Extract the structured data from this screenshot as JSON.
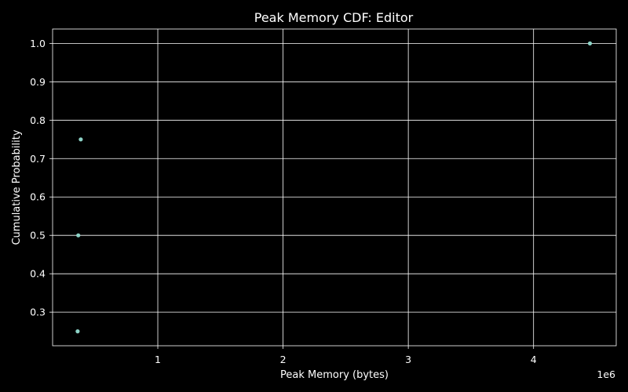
{
  "chart_data": {
    "type": "scatter",
    "title": "Peak Memory CDF: Editor",
    "xlabel": "Peak Memory (bytes)",
    "ylabel": "Cumulative Probability",
    "x_offset_text": "1e6",
    "x_ticks": [
      1,
      2,
      3,
      4
    ],
    "y_ticks": [
      "0.3",
      "0.4",
      "0.5",
      "0.6",
      "0.7",
      "0.8",
      "0.9",
      "1.0"
    ],
    "xlim": [
      0.16,
      4.66
    ],
    "ylim": [
      0.2125,
      1.0375
    ],
    "grid": true,
    "series": [
      {
        "x": [
          0.36,
          0.365,
          0.385,
          4.45
        ],
        "y": [
          0.25,
          0.5,
          0.75,
          1.0
        ]
      }
    ],
    "colors": {
      "background": "#000000",
      "foreground": "#ffffff",
      "marker": "#8dd3c7"
    }
  }
}
